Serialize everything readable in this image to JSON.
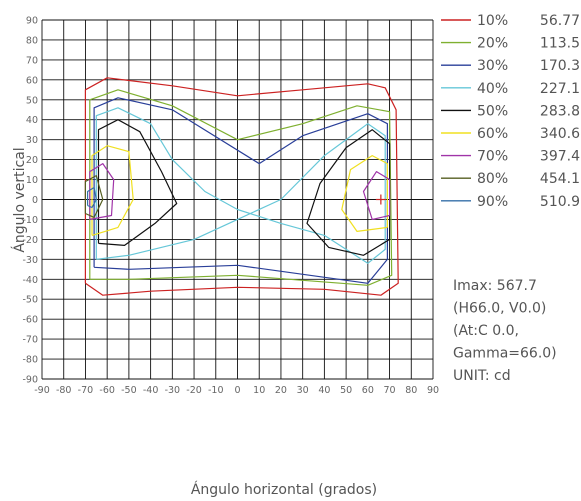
{
  "chart_data": {
    "type": "line",
    "xlabel": "Ángulo horizontal (grados)",
    "ylabel": "Ángulo vertical",
    "xlim": [
      -90,
      90
    ],
    "ylim": [
      -90,
      90
    ],
    "x_ticks": [
      "-90",
      "-80",
      "-70",
      "-60",
      "-50",
      "-40",
      "-30",
      "-20",
      "-10",
      "0",
      "10",
      "20",
      "30",
      "40",
      "50",
      "60",
      "70",
      "80",
      "90"
    ],
    "y_ticks": [
      "90",
      "80",
      "70",
      "60",
      "50",
      "40",
      "30",
      "20",
      "10",
      "0",
      "-10",
      "-20",
      "-30",
      "-40",
      "-50",
      "-60",
      "-70",
      "-80",
      "-90"
    ],
    "grid": true,
    "legend_position": "right",
    "series": [
      {
        "name": "10%",
        "value": "56.77",
        "color": "#cc2222",
        "values": [
          [
            -70,
            -42
          ],
          [
            -70,
            55
          ],
          [
            -60,
            61
          ],
          [
            -30,
            57
          ],
          [
            0,
            52
          ],
          [
            30,
            55
          ],
          [
            60,
            58
          ],
          [
            68,
            56
          ],
          [
            73,
            45
          ],
          [
            74,
            -42
          ],
          [
            66,
            -48
          ],
          [
            40,
            -45
          ],
          [
            0,
            -44
          ],
          [
            -40,
            -46
          ],
          [
            -62,
            -48
          ],
          [
            -70,
            -42
          ]
        ]
      },
      {
        "name": "20%",
        "value": "113.5",
        "color": "#7fb030",
        "values": [
          [
            -68,
            -40
          ],
          [
            -68,
            50
          ],
          [
            -55,
            55
          ],
          [
            -30,
            47
          ],
          [
            0,
            30
          ],
          [
            30,
            38
          ],
          [
            55,
            47
          ],
          [
            70,
            44
          ],
          [
            71,
            -38
          ],
          [
            60,
            -43
          ],
          [
            0,
            -38
          ],
          [
            -50,
            -40
          ],
          [
            -68,
            -40
          ]
        ]
      },
      {
        "name": "30%",
        "value": "170.3",
        "color": "#2a3f99",
        "values": [
          [
            -66,
            -34
          ],
          [
            -66,
            46
          ],
          [
            -55,
            51
          ],
          [
            -30,
            45
          ],
          [
            10,
            18
          ],
          [
            30,
            32
          ],
          [
            60,
            43
          ],
          [
            69,
            38
          ],
          [
            69,
            -30
          ],
          [
            60,
            -42
          ],
          [
            0,
            -33
          ],
          [
            -50,
            -35
          ],
          [
            -66,
            -34
          ]
        ]
      },
      {
        "name": "40%",
        "value": "227.1",
        "color": "#66c7d8",
        "values": [
          [
            -65,
            -30
          ],
          [
            -65,
            42
          ],
          [
            -55,
            46
          ],
          [
            -40,
            38
          ],
          [
            -30,
            20
          ],
          [
            -15,
            4
          ],
          [
            0,
            -5
          ],
          [
            20,
            -12
          ],
          [
            40,
            -18
          ],
          [
            60,
            -32
          ],
          [
            68,
            -25
          ],
          [
            68,
            32
          ],
          [
            60,
            38
          ],
          [
            40,
            22
          ],
          [
            20,
            0
          ],
          [
            0,
            -10
          ],
          [
            -20,
            -20
          ],
          [
            -50,
            -28
          ],
          [
            -65,
            -30
          ]
        ]
      },
      {
        "name": "50%",
        "value": "283.8",
        "color": "#111111",
        "values": [
          [
            -64,
            -22
          ],
          [
            -64,
            35
          ],
          [
            -55,
            40
          ],
          [
            -45,
            34
          ],
          [
            -35,
            14
          ],
          [
            -28,
            -2
          ],
          [
            -38,
            -12
          ],
          [
            -52,
            -23
          ],
          [
            -64,
            -22
          ]
        ]
      },
      {
        "name": "50%b",
        "value": "",
        "color": "#111111",
        "values": [
          [
            70,
            -20
          ],
          [
            70,
            28
          ],
          [
            62,
            35
          ],
          [
            50,
            26
          ],
          [
            38,
            8
          ],
          [
            32,
            -12
          ],
          [
            42,
            -24
          ],
          [
            58,
            -28
          ],
          [
            70,
            -20
          ]
        ]
      },
      {
        "name": "60%",
        "value": "340.6",
        "color": "#f0e020",
        "values": [
          [
            -67,
            -18
          ],
          [
            -67,
            22
          ],
          [
            -60,
            27
          ],
          [
            -50,
            24
          ],
          [
            -48,
            0
          ],
          [
            -55,
            -14
          ],
          [
            -67,
            -18
          ]
        ]
      },
      {
        "name": "60%b",
        "value": "",
        "color": "#f0e020",
        "values": [
          [
            69,
            -14
          ],
          [
            69,
            18
          ],
          [
            62,
            22
          ],
          [
            52,
            15
          ],
          [
            48,
            -5
          ],
          [
            55,
            -16
          ],
          [
            69,
            -14
          ]
        ]
      },
      {
        "name": "70%",
        "value": "397.4",
        "color": "#a034a8",
        "values": [
          [
            -68,
            -10
          ],
          [
            -68,
            14
          ],
          [
            -62,
            18
          ],
          [
            -57,
            10
          ],
          [
            -58,
            -8
          ],
          [
            -68,
            -10
          ]
        ]
      },
      {
        "name": "70%b",
        "value": "",
        "color": "#a034a8",
        "values": [
          [
            70,
            -8
          ],
          [
            70,
            10
          ],
          [
            64,
            14
          ],
          [
            58,
            4
          ],
          [
            62,
            -10
          ],
          [
            70,
            -8
          ]
        ]
      },
      {
        "name": "80%",
        "value": "454.1",
        "color": "#555e20",
        "values": [
          [
            -70,
            -7
          ],
          [
            -70,
            9
          ],
          [
            -65,
            12
          ],
          [
            -62,
            0
          ],
          [
            -66,
            -9
          ],
          [
            -70,
            -7
          ]
        ]
      },
      {
        "name": "90%",
        "value": "510.9",
        "color": "#356fa8",
        "values": [
          [
            -69,
            -3
          ],
          [
            -69,
            4
          ],
          [
            -66,
            6
          ],
          [
            -65,
            0
          ],
          [
            -67,
            -4
          ],
          [
            -69,
            -3
          ]
        ]
      }
    ],
    "peak_marker": {
      "x": 66,
      "y": 0
    }
  },
  "info": [
    "Imax: 567.7",
    "(H66.0, V0.0)",
    "(At:C 0.0,",
    "Gamma=66.0)",
    "UNIT: cd"
  ]
}
